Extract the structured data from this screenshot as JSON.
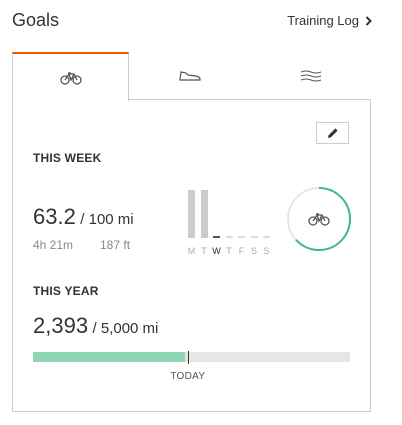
{
  "header": {
    "title": "Goals",
    "training_log": "Training Log"
  },
  "tabs": [
    {
      "icon": "bike-icon",
      "active": true
    },
    {
      "icon": "shoe-icon",
      "active": false
    },
    {
      "icon": "waves-icon",
      "active": false
    }
  ],
  "colors": {
    "accent": "#fc5200",
    "progress": "#8fd6b7",
    "ring": "#3cb997"
  },
  "week": {
    "heading": "THIS WEEK",
    "value": "63.2",
    "goal": "/ 100 mi",
    "time": "4h 21m",
    "elevation": "187 ft",
    "progress": 0.632,
    "days": [
      {
        "label": "M",
        "value": 1.0,
        "today": false
      },
      {
        "label": "T",
        "value": 1.0,
        "today": false
      },
      {
        "label": "W",
        "value": 0,
        "today": true
      },
      {
        "label": "T",
        "value": 0,
        "today": false
      },
      {
        "label": "F",
        "value": 0,
        "today": false
      },
      {
        "label": "S",
        "value": 0,
        "today": false
      },
      {
        "label": "S",
        "value": 0,
        "today": false
      }
    ]
  },
  "year": {
    "heading": "THIS YEAR",
    "value": "2,393",
    "goal": "/ 5,000 mi",
    "progress": 0.4786,
    "today_position": 0.49,
    "today_label": "TODAY"
  }
}
